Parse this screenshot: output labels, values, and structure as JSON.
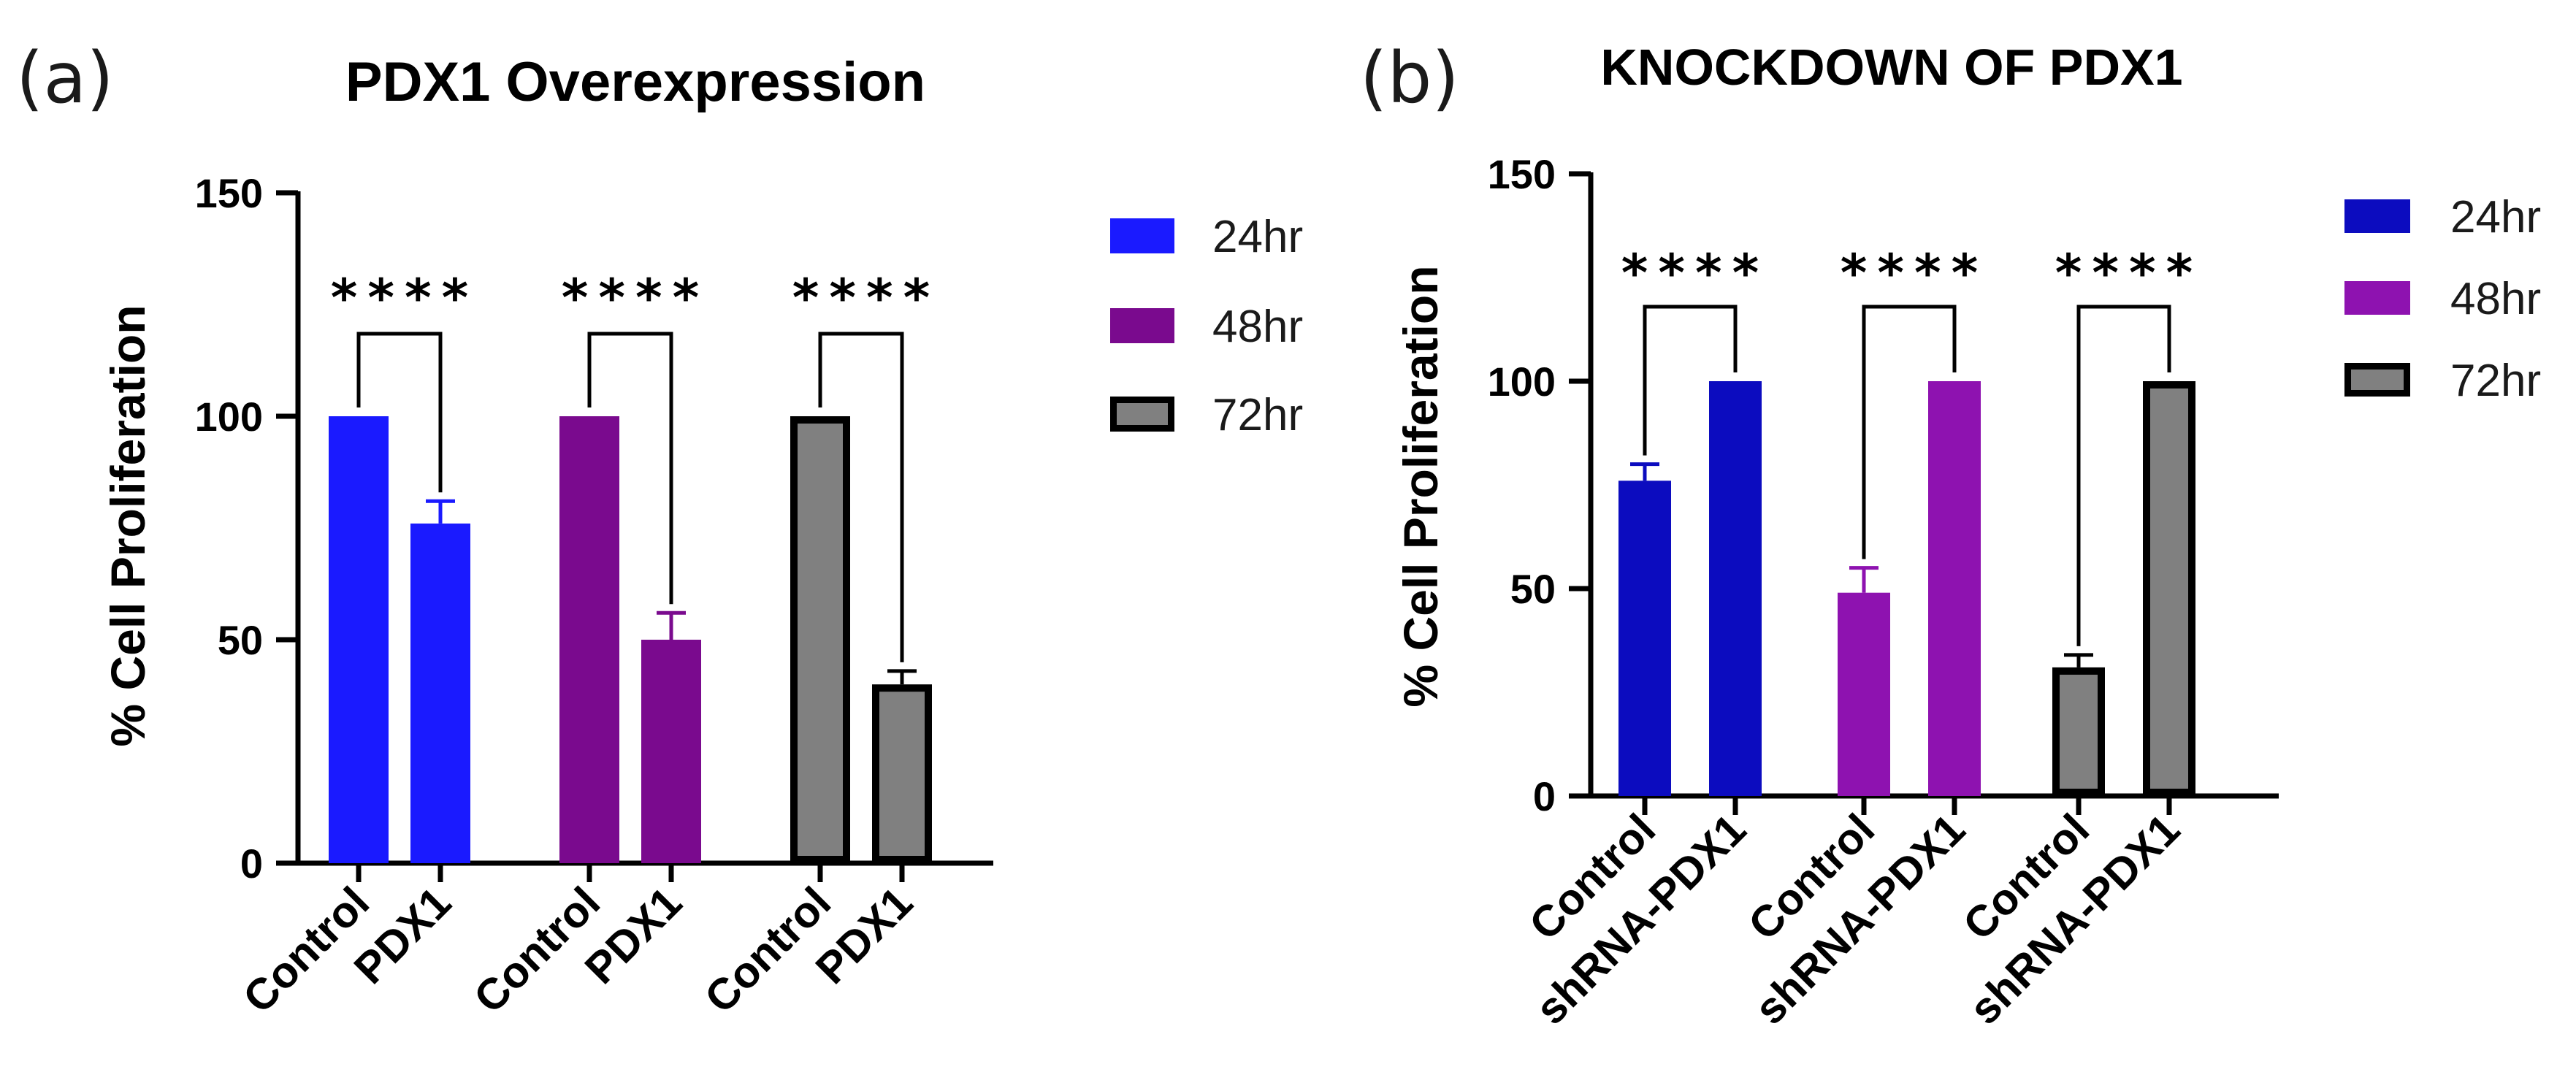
{
  "chart_data": [
    {
      "type": "bar",
      "panel_label": "(a)",
      "title": "PDX1 Overexpression",
      "xlabel": "",
      "ylabel": "% Cell Proliferation",
      "ylim": [
        0,
        150
      ],
      "yticks": [
        "0",
        "50",
        "100",
        "150"
      ],
      "legend_position": "right",
      "groups": [
        {
          "series": "24hr",
          "color": "#1a1aff",
          "edge": "#1a1aff",
          "bars": [
            {
              "label": "Control",
              "value": 100,
              "error": 0
            },
            {
              "label": "PDX1",
              "value": 76,
              "error": 5
            }
          ],
          "significance": "****"
        },
        {
          "series": "48hr",
          "color": "#7a0a8e",
          "edge": "#7a0a8e",
          "bars": [
            {
              "label": "Control",
              "value": 100,
              "error": 0
            },
            {
              "label": "PDX1",
              "value": 50,
              "error": 6
            }
          ],
          "significance": "****"
        },
        {
          "series": "72hr",
          "color": "#808080",
          "edge": "#000000",
          "bars": [
            {
              "label": "Control",
              "value": 100,
              "error": 0
            },
            {
              "label": "PDX1",
              "value": 40,
              "error": 3
            }
          ],
          "significance": "****"
        }
      ],
      "legend": [
        {
          "label": "24hr",
          "color": "#1a1aff",
          "edge": "#1a1aff"
        },
        {
          "label": "48hr",
          "color": "#7a0a8e",
          "edge": "#7a0a8e"
        },
        {
          "label": "72hr",
          "color": "#808080",
          "edge": "#000000"
        }
      ]
    },
    {
      "type": "bar",
      "panel_label": "(b)",
      "title": "KNOCKDOWN OF PDX1",
      "xlabel": "",
      "ylabel": "% Cell Proliferation",
      "ylim": [
        0,
        150
      ],
      "yticks": [
        "0",
        "50",
        "100",
        "150"
      ],
      "legend_position": "right",
      "groups": [
        {
          "series": "24hr",
          "color": "#0c0cbf",
          "edge": "#0c0cbf",
          "bars": [
            {
              "label": "Control",
              "value": 76,
              "error": 4
            },
            {
              "label": "shRNA-PDX1",
              "value": 100,
              "error": 0
            }
          ],
          "significance": "****"
        },
        {
          "series": "48hr",
          "color": "#8e12b0",
          "edge": "#8e12b0",
          "bars": [
            {
              "label": "Control",
              "value": 49,
              "error": 6
            },
            {
              "label": "shRNA-PDX1",
              "value": 100,
              "error": 0
            }
          ],
          "significance": "****"
        },
        {
          "series": "72hr",
          "color": "#808080",
          "edge": "#000000",
          "bars": [
            {
              "label": "Control",
              "value": 31,
              "error": 3
            },
            {
              "label": "shRNA-PDX1",
              "value": 100,
              "error": 0
            }
          ],
          "significance": "****"
        }
      ],
      "legend": [
        {
          "label": "24hr",
          "color": "#0c0cbf",
          "edge": "#0c0cbf"
        },
        {
          "label": "48hr",
          "color": "#8e12b0",
          "edge": "#8e12b0"
        },
        {
          "label": "72hr",
          "color": "#808080",
          "edge": "#000000"
        }
      ]
    }
  ]
}
